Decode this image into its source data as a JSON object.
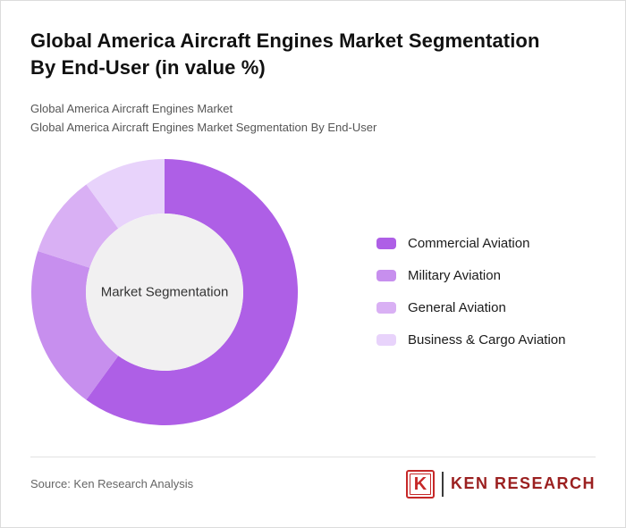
{
  "page": {
    "title_line1": "Global America Aircraft Engines Market Segmentation",
    "title_line2": "By End-User (in value %)",
    "subtitle_1": "Global America Aircraft Engines Market",
    "subtitle_2": "Global America Aircraft Engines Market Segmentation By End-User",
    "source": "Source: Ken Research Analysis",
    "logo_letter": "K",
    "logo_text": "KEN RESEARCH"
  },
  "chart_data": {
    "type": "pie",
    "donut": true,
    "title": "Global America Aircraft Engines Market Segmentation By End-User (in value %)",
    "center_label": "Market Segmentation",
    "legend_position": "right",
    "start_angle_deg": 0,
    "direction": "clockwise",
    "series": [
      {
        "name": "Commercial Aviation",
        "value": 60,
        "color": "#ae5fe6"
      },
      {
        "name": "Military Aviation",
        "value": 20,
        "color": "#c78fee"
      },
      {
        "name": "General Aviation",
        "value": 10,
        "color": "#d9b0f4"
      },
      {
        "name": "Business & Cargo Aviation",
        "value": 10,
        "color": "#e8d3fb"
      }
    ],
    "inner_circle_color": "#f1f0f1"
  },
  "colors": {
    "logo_red": "#c62828",
    "logo_text_red": "#9b2020",
    "title_text": "#111111",
    "subtitle_text": "#565656"
  }
}
